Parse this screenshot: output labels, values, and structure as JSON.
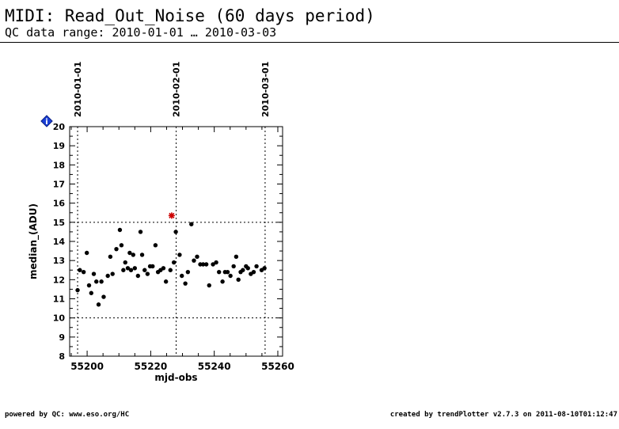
{
  "header": {
    "title": "MIDI: Read_Out_Noise (60 days period)",
    "subtitle": "QC data range: 2010-01-01 … 2010-03-03"
  },
  "footer": {
    "left": "powered by QC: www.eso.org/HC",
    "right": "created by trendPlotter v2.7.3 on 2011-08-10T01:12:47"
  },
  "info_badge": "i",
  "colors": {
    "points": "#000000",
    "outlier": "#cc0000",
    "badge": "#1a3fd6"
  },
  "chart_data": {
    "type": "scatter",
    "xlabel": "mjd-obs",
    "ylabel": "median_(ADU)",
    "xlim": [
      55194.5,
      55261.5
    ],
    "ylim": [
      8,
      20
    ],
    "xticks": [
      55200,
      55220,
      55240,
      55260
    ],
    "yticks": [
      8,
      9,
      10,
      11,
      12,
      13,
      14,
      15,
      16,
      17,
      18,
      19,
      20
    ],
    "threshold_lines": [
      10,
      15
    ],
    "date_markers": [
      {
        "label": "2010-01-01",
        "mjd": 55197
      },
      {
        "label": "2010-02-01",
        "mjd": 55228
      },
      {
        "label": "2010-03-01",
        "mjd": 55256
      }
    ],
    "x": [
      55197.0,
      55197.7,
      55198.9,
      55199.9,
      55200.6,
      55201.3,
      55202.1,
      55202.9,
      55203.6,
      55204.5,
      55205.2,
      55206.5,
      55207.3,
      55208.0,
      55209.2,
      55210.3,
      55210.8,
      55211.4,
      55212.0,
      55212.8,
      55213.4,
      55213.8,
      55214.5,
      55215.0,
      55216.0,
      55216.8,
      55217.3,
      55218.1,
      55219.0,
      55219.8,
      55220.6,
      55221.5,
      55222.3,
      55223.1,
      55224.0,
      55224.8,
      55226.2,
      55227.3,
      55227.9,
      55229.1,
      55229.8,
      55230.9,
      55231.7,
      55232.8,
      55233.6,
      55234.6,
      55235.6,
      55236.5,
      55237.5,
      55238.4,
      55239.6,
      55240.6,
      55241.5,
      55242.6,
      55243.4,
      55244.2,
      55245.1,
      55246.1,
      55246.9,
      55247.6,
      55248.3,
      55249.0,
      55250.0,
      55250.6,
      55251.5,
      55252.4,
      55253.3,
      55254.9,
      55255.8
    ],
    "y": [
      11.45,
      12.5,
      12.4,
      13.4,
      11.7,
      11.3,
      12.3,
      11.9,
      10.7,
      11.9,
      11.1,
      12.2,
      13.2,
      12.3,
      13.6,
      14.6,
      13.8,
      12.5,
      12.9,
      12.6,
      13.4,
      12.5,
      13.3,
      12.6,
      12.2,
      14.5,
      13.3,
      12.5,
      12.3,
      12.7,
      12.7,
      13.8,
      12.4,
      12.5,
      12.6,
      11.9,
      12.5,
      12.9,
      14.5,
      13.3,
      12.2,
      11.8,
      12.4,
      14.9,
      13.0,
      13.2,
      12.8,
      12.8,
      12.8,
      11.7,
      12.8,
      12.9,
      12.4,
      11.9,
      12.4,
      12.4,
      12.2,
      12.7,
      13.2,
      12.0,
      12.4,
      12.5,
      12.7,
      12.6,
      12.3,
      12.4,
      12.7,
      12.5,
      12.6
    ],
    "outliers": {
      "x": [
        55226.6
      ],
      "y": [
        15.35
      ]
    }
  }
}
